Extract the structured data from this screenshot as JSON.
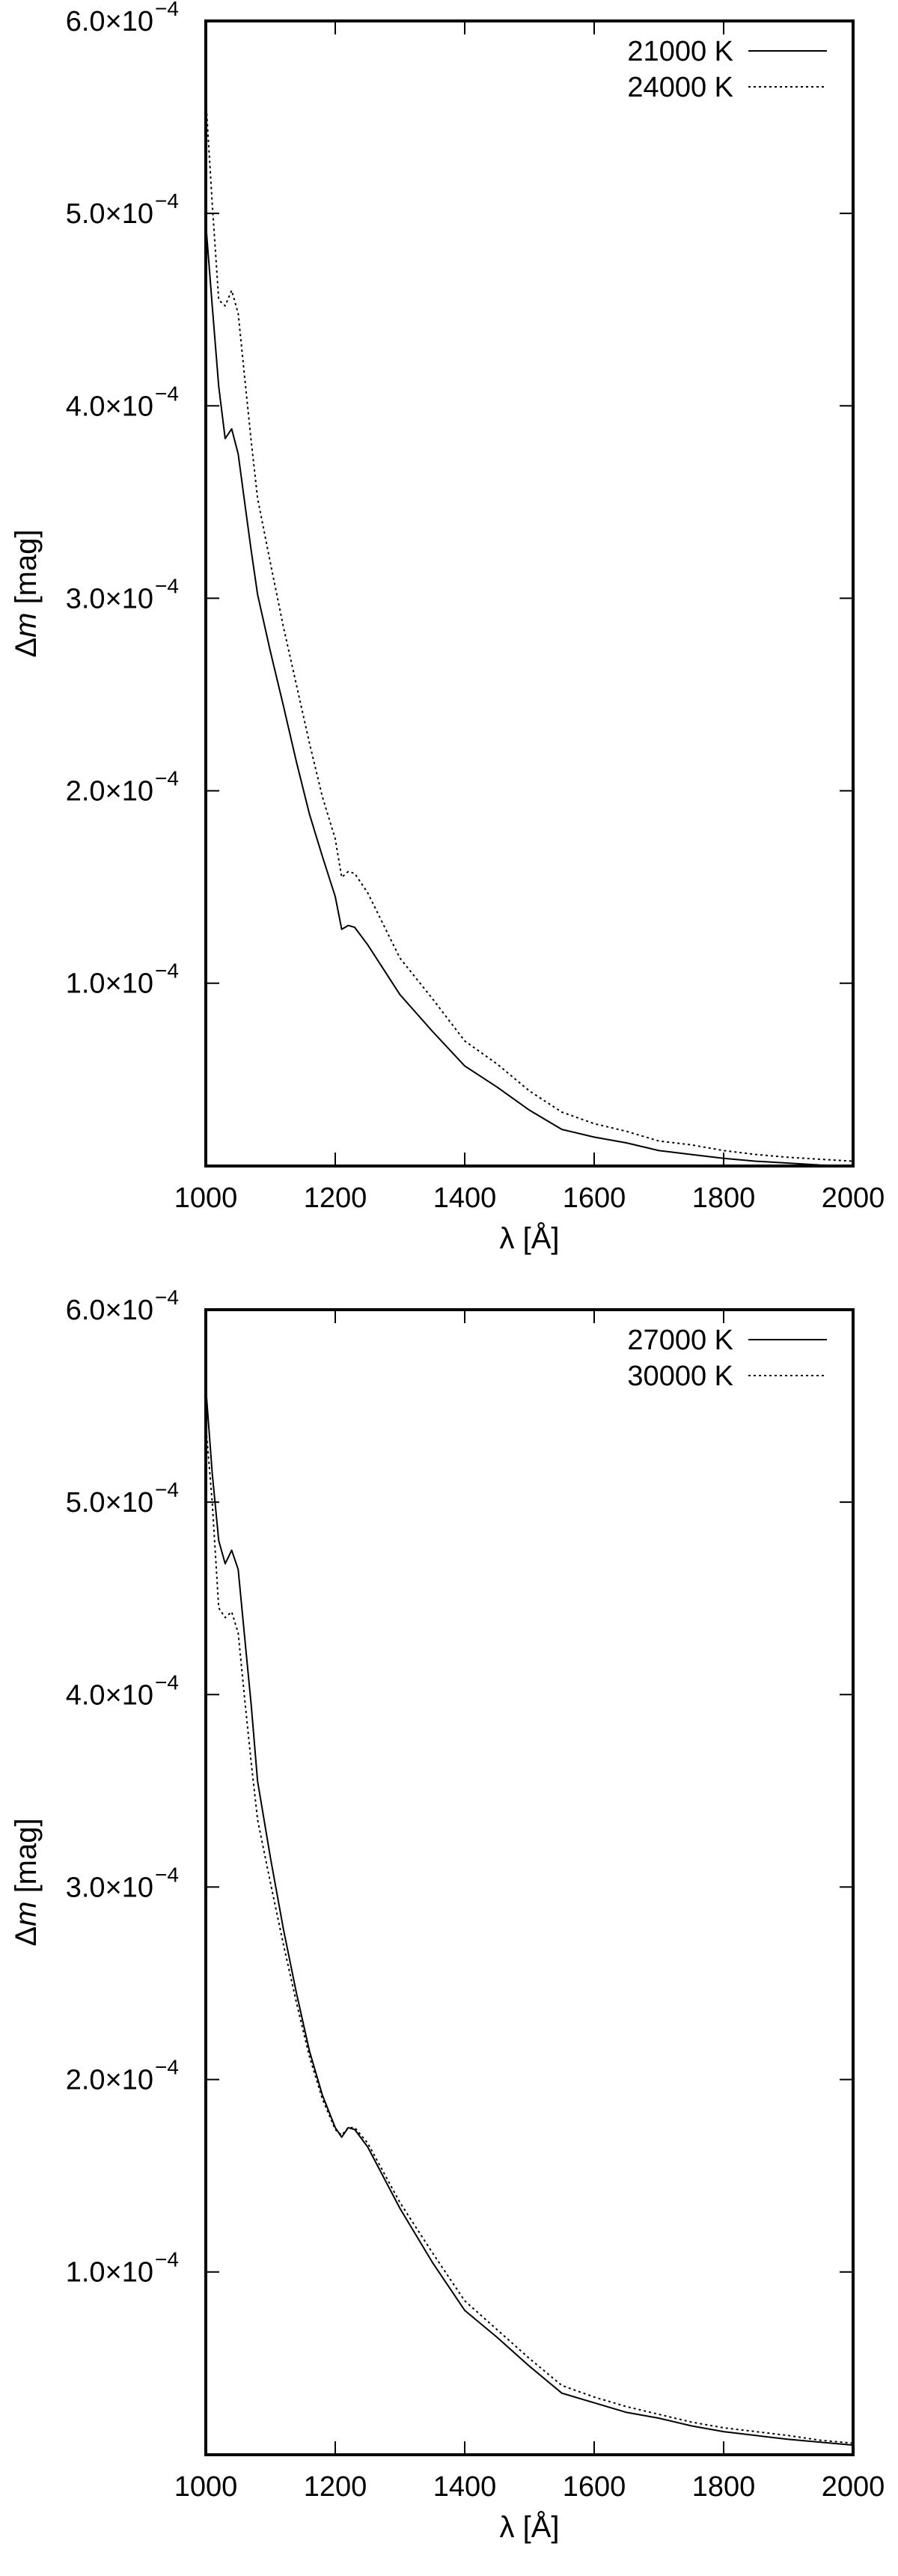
{
  "chart_data": [
    {
      "type": "line",
      "xlabel": "λ [Å]",
      "ylabel_symbol": "Δ",
      "ylabel_var": "m",
      "ylabel_unit": " [mag]",
      "xlim": [
        1000,
        2000
      ],
      "ylim": [
        5e-06,
        0.0006
      ],
      "x_ticks": [
        1000,
        1200,
        1400,
        1600,
        1800,
        2000
      ],
      "y_ticks": [
        {
          "value": 0.0001,
          "mantissa": "1.0×10",
          "exp": "−4"
        },
        {
          "value": 0.0002,
          "mantissa": "2.0×10",
          "exp": "−4"
        },
        {
          "value": 0.0003,
          "mantissa": "3.0×10",
          "exp": "−4"
        },
        {
          "value": 0.0004,
          "mantissa": "4.0×10",
          "exp": "−4"
        },
        {
          "value": 0.0005,
          "mantissa": "5.0×10",
          "exp": "−4"
        },
        {
          "value": 0.0006,
          "mantissa": "6.0×10",
          "exp": "−4"
        }
      ],
      "legend_position": "top-right",
      "grid": false,
      "series": [
        {
          "name": "21000 K",
          "style": "solid",
          "x": [
            1000,
            1010,
            1020,
            1030,
            1040,
            1050,
            1060,
            1070,
            1080,
            1100,
            1120,
            1140,
            1160,
            1180,
            1200,
            1210,
            1220,
            1230,
            1250,
            1300,
            1350,
            1400,
            1450,
            1500,
            1550,
            1600,
            1650,
            1700,
            1750,
            1800,
            1850,
            1900,
            1950,
            2000
          ],
          "y": [
            0.000495,
            0.000452,
            0.00041,
            0.000383,
            0.000388,
            0.000375,
            0.00035,
            0.000325,
            0.000302,
            0.000272,
            0.000244,
            0.000215,
            0.000188,
            0.000166,
            0.000145,
            0.000128,
            0.00013,
            0.000129,
            0.00012,
            9.4e-05,
            7.5e-05,
            5.7e-05,
            4.6e-05,
            3.4e-05,
            2.4e-05,
            2e-05,
            1.7e-05,
            1.3e-05,
            1.1e-05,
            9e-06,
            7.5e-06,
            6.5e-06,
            5.5e-06,
            5e-06
          ]
        },
        {
          "name": "24000 K",
          "style": "dotted",
          "x": [
            1000,
            1010,
            1020,
            1030,
            1040,
            1050,
            1060,
            1070,
            1080,
            1100,
            1120,
            1140,
            1160,
            1180,
            1200,
            1210,
            1220,
            1230,
            1250,
            1300,
            1350,
            1400,
            1450,
            1500,
            1550,
            1600,
            1650,
            1700,
            1750,
            1800,
            1850,
            1900,
            1950,
            2000
          ],
          "y": [
            0.00056,
            0.000505,
            0.000455,
            0.000452,
            0.00046,
            0.000448,
            0.000415,
            0.000382,
            0.000352,
            0.000318,
            0.000285,
            0.000255,
            0.000225,
            0.000197,
            0.000175,
            0.000155,
            0.000158,
            0.000157,
            0.000147,
            0.000113,
            9.2e-05,
            7e-05,
            5.8e-05,
            4.4e-05,
            3.3e-05,
            2.7e-05,
            2.3e-05,
            1.8e-05,
            1.6e-05,
            1.3e-05,
            1.1e-05,
            9.5e-06,
            8.5e-06,
            7.5e-06
          ]
        }
      ]
    },
    {
      "type": "line",
      "xlabel": "λ [Å]",
      "ylabel_symbol": "Δ",
      "ylabel_var": "m",
      "ylabel_unit": " [mag]",
      "xlim": [
        1000,
        2000
      ],
      "ylim": [
        5e-06,
        0.0006
      ],
      "x_ticks": [
        1000,
        1200,
        1400,
        1600,
        1800,
        2000
      ],
      "y_ticks": [
        {
          "value": 0.0001,
          "mantissa": "1.0×10",
          "exp": "−4"
        },
        {
          "value": 0.0002,
          "mantissa": "2.0×10",
          "exp": "−4"
        },
        {
          "value": 0.0003,
          "mantissa": "3.0×10",
          "exp": "−4"
        },
        {
          "value": 0.0004,
          "mantissa": "4.0×10",
          "exp": "−4"
        },
        {
          "value": 0.0005,
          "mantissa": "5.0×10",
          "exp": "−4"
        },
        {
          "value": 0.0006,
          "mantissa": "6.0×10",
          "exp": "−4"
        }
      ],
      "legend_position": "top-right",
      "grid": false,
      "series": [
        {
          "name": "27000 K",
          "style": "solid",
          "x": [
            1000,
            1010,
            1020,
            1030,
            1040,
            1050,
            1060,
            1070,
            1080,
            1100,
            1120,
            1140,
            1160,
            1180,
            1200,
            1210,
            1220,
            1230,
            1250,
            1300,
            1350,
            1400,
            1450,
            1500,
            1550,
            1600,
            1650,
            1700,
            1750,
            1800,
            1850,
            1900,
            1950,
            2000
          ],
          "y": [
            0.00056,
            0.000515,
            0.00048,
            0.000468,
            0.000475,
            0.000465,
            0.00043,
            0.000395,
            0.000355,
            0.000315,
            0.000278,
            0.000245,
            0.000215,
            0.000192,
            0.000175,
            0.00017,
            0.000175,
            0.000174,
            0.000165,
            0.000133,
            0.000105,
            8e-05,
            6.6e-05,
            5.1e-05,
            3.7e-05,
            3.2e-05,
            2.7e-05,
            2.4e-05,
            2e-05,
            1.7e-05,
            1.5e-05,
            1.3e-05,
            1.15e-05,
            1e-05
          ]
        },
        {
          "name": "30000 K",
          "style": "dotted",
          "x": [
            1000,
            1010,
            1020,
            1030,
            1040,
            1050,
            1060,
            1070,
            1080,
            1100,
            1120,
            1140,
            1160,
            1180,
            1200,
            1210,
            1220,
            1230,
            1250,
            1300,
            1350,
            1400,
            1450,
            1500,
            1550,
            1600,
            1650,
            1700,
            1750,
            1800,
            1850,
            1900,
            1950,
            2000
          ],
          "y": [
            0.00054,
            0.0005,
            0.000445,
            0.00044,
            0.000443,
            0.000432,
            0.000398,
            0.000365,
            0.000335,
            0.000302,
            0.00027,
            0.00024,
            0.000212,
            0.00019,
            0.000174,
            0.000171,
            0.000175,
            0.000175,
            0.000167,
            0.000136,
            0.00011,
            8.5e-05,
            7e-05,
            5.5e-05,
            4.1e-05,
            3.5e-05,
            3e-05,
            2.6e-05,
            2.2e-05,
            1.9e-05,
            1.7e-05,
            1.5e-05,
            1.25e-05,
            1.1e-05
          ]
        }
      ]
    }
  ]
}
